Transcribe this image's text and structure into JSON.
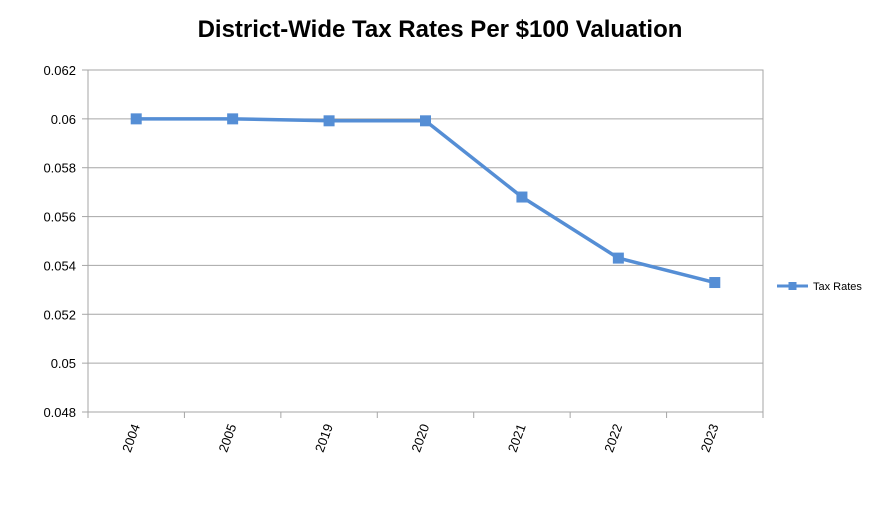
{
  "chart_data": {
    "type": "line",
    "title": "District-Wide Tax Rates Per $100 Valuation",
    "categories": [
      "2004",
      "2005",
      "2019",
      "2020",
      "2021",
      "2022",
      "2023"
    ],
    "series": [
      {
        "name": "Tax Rates",
        "values": [
          0.06,
          0.06,
          0.05992,
          0.05992,
          0.0568,
          0.0543,
          0.0533
        ],
        "color": "#558ED5"
      }
    ],
    "ylim": [
      0.048,
      0.062
    ],
    "yticks": [
      "0.048",
      "0.05",
      "0.052",
      "0.054",
      "0.056",
      "0.058",
      "0.06",
      "0.062"
    ],
    "grid": true,
    "legend_position": "right",
    "xlabel": "",
    "ylabel": ""
  }
}
